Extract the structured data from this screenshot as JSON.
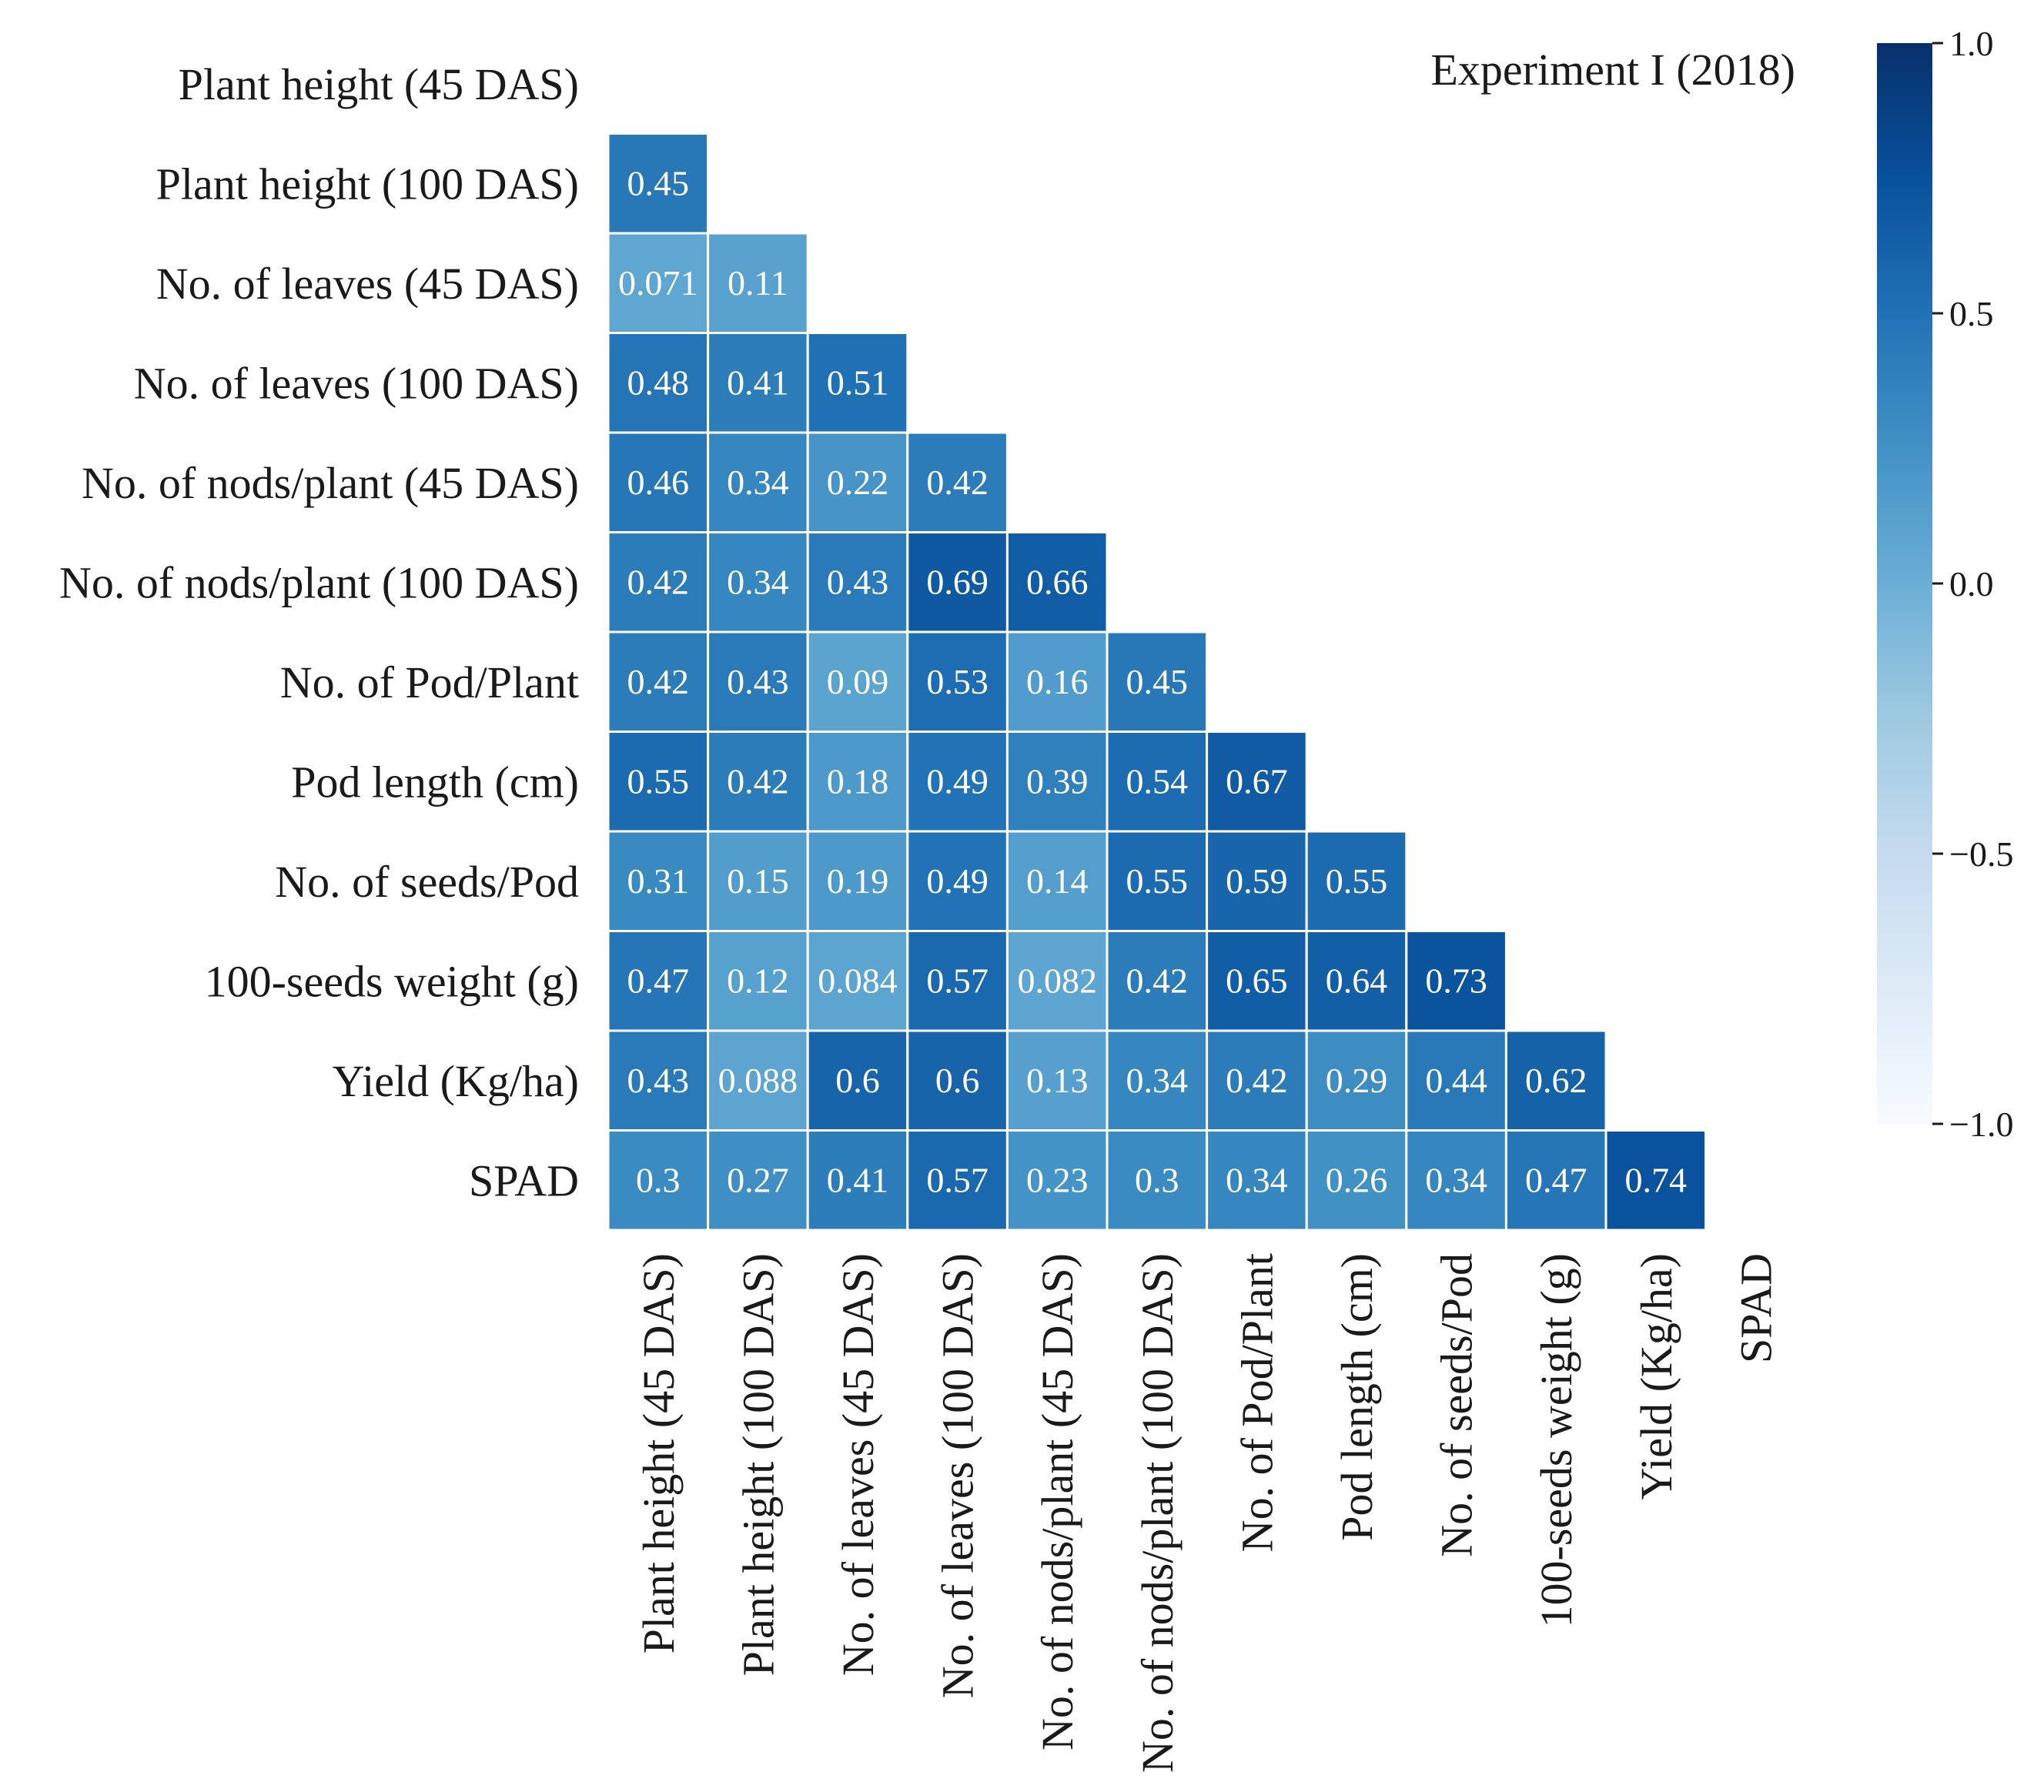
{
  "chart_data": {
    "type": "heatmap",
    "title": "Experiment I (2018)",
    "variables": [
      "Plant height (45 DAS)",
      "Plant height (100 DAS)",
      "No. of leaves (45 DAS)",
      "No. of leaves (100 DAS)",
      "No. of nods/plant (45 DAS)",
      "No. of nods/plant (100 DAS)",
      "No. of Pod/Plant",
      "Pod length (cm)",
      "No. of seeds/Pod",
      "100-seeds weight (g)",
      "Yield (Kg/ha)",
      "SPAD"
    ],
    "layout": "lower-triangle (diagonal masked)",
    "values": [
      [],
      [
        0.45
      ],
      [
        0.071,
        0.11
      ],
      [
        0.48,
        0.41,
        0.51
      ],
      [
        0.46,
        0.34,
        0.22,
        0.42
      ],
      [
        0.42,
        0.34,
        0.43,
        0.69,
        0.66
      ],
      [
        0.42,
        0.43,
        0.09,
        0.53,
        0.16,
        0.45
      ],
      [
        0.55,
        0.42,
        0.18,
        0.49,
        0.39,
        0.54,
        0.67
      ],
      [
        0.31,
        0.15,
        0.19,
        0.49,
        0.14,
        0.55,
        0.59,
        0.55
      ],
      [
        0.47,
        0.12,
        0.084,
        0.57,
        0.082,
        0.42,
        0.65,
        0.64,
        0.73
      ],
      [
        0.43,
        0.088,
        0.6,
        0.6,
        0.13,
        0.34,
        0.42,
        0.29,
        0.44,
        0.62
      ],
      [
        0.3,
        0.27,
        0.41,
        0.57,
        0.23,
        0.3,
        0.34,
        0.26,
        0.34,
        0.47,
        0.74
      ]
    ],
    "colorbar": {
      "range": [
        -1.0,
        1.0
      ],
      "ticks": [
        1.0,
        0.5,
        0.0,
        -0.5,
        -1.0
      ],
      "tick_labels": [
        "1.0",
        "0.5",
        "0.0",
        "−0.5",
        "−1.0"
      ],
      "colormap": "Blues",
      "colors": [
        "#f7fbff",
        "#deebf7",
        "#c6dbef",
        "#9ecae1",
        "#6baed6",
        "#4292c6",
        "#2171b5",
        "#08519c",
        "#08306b"
      ]
    }
  }
}
